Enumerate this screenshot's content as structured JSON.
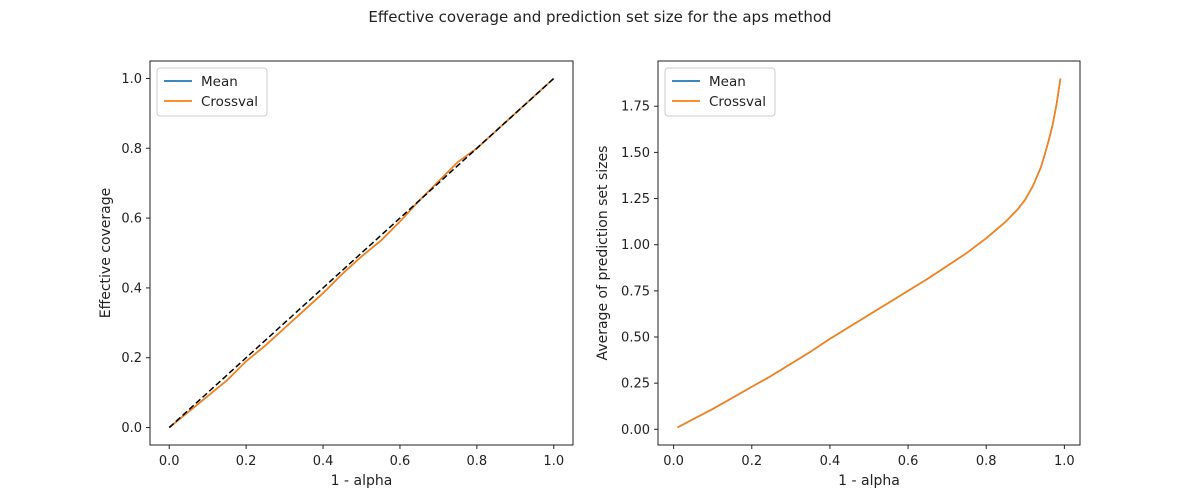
{
  "figure_title": "Effective coverage and prediction set size for the aps method",
  "chart_data": [
    {
      "type": "line",
      "title": "",
      "xlabel": "1 - alpha",
      "ylabel": "Effective coverage",
      "xlim": [
        -0.05,
        1.05
      ],
      "ylim": [
        -0.05,
        1.05
      ],
      "xticks": [
        "0.0",
        "0.2",
        "0.4",
        "0.6",
        "0.8",
        "1.0"
      ],
      "yticks": [
        "0.0",
        "0.2",
        "0.4",
        "0.6",
        "0.8",
        "1.0"
      ],
      "grid": false,
      "legend_position": "top-left",
      "x": [
        0.0,
        0.05,
        0.1,
        0.15,
        0.2,
        0.25,
        0.3,
        0.35,
        0.4,
        0.45,
        0.5,
        0.55,
        0.6,
        0.65,
        0.7,
        0.75,
        0.8,
        0.85,
        0.9,
        0.95,
        1.0
      ],
      "series": [
        {
          "name": "Mean",
          "color": "#1f77b4",
          "style": "solid",
          "values": [
            0.0,
            0.045,
            0.09,
            0.135,
            0.19,
            0.235,
            0.285,
            0.335,
            0.385,
            0.44,
            0.49,
            0.535,
            0.59,
            0.65,
            0.705,
            0.76,
            0.8,
            0.85,
            0.9,
            0.95,
            1.0
          ]
        },
        {
          "name": "Crossval",
          "color": "#ff7f0e",
          "style": "solid",
          "values": [
            0.0,
            0.045,
            0.09,
            0.135,
            0.19,
            0.235,
            0.285,
            0.335,
            0.385,
            0.44,
            0.49,
            0.535,
            0.59,
            0.65,
            0.705,
            0.76,
            0.8,
            0.85,
            0.9,
            0.95,
            1.0
          ]
        },
        {
          "name": "",
          "color": "#000000",
          "style": "dashed",
          "values": [
            0.0,
            0.05,
            0.1,
            0.15,
            0.2,
            0.25,
            0.3,
            0.35,
            0.4,
            0.45,
            0.5,
            0.55,
            0.6,
            0.65,
            0.7,
            0.75,
            0.8,
            0.85,
            0.9,
            0.95,
            1.0
          ]
        }
      ]
    },
    {
      "type": "line",
      "title": "",
      "xlabel": "1 - alpha",
      "ylabel": "Average of prediction set sizes",
      "xlim": [
        -0.04,
        1.04
      ],
      "ylim": [
        -0.085,
        1.995
      ],
      "xticks": [
        "0.0",
        "0.2",
        "0.4",
        "0.6",
        "0.8",
        "1.0"
      ],
      "yticks": [
        "0.00",
        "0.25",
        "0.50",
        "0.75",
        "1.00",
        "1.25",
        "1.50",
        "1.75"
      ],
      "grid": false,
      "legend_position": "top-left",
      "x": [
        0.01,
        0.05,
        0.1,
        0.15,
        0.2,
        0.25,
        0.3,
        0.35,
        0.4,
        0.45,
        0.5,
        0.55,
        0.6,
        0.65,
        0.7,
        0.75,
        0.8,
        0.85,
        0.88,
        0.9,
        0.92,
        0.94,
        0.95,
        0.96,
        0.97,
        0.98,
        0.99
      ],
      "series": [
        {
          "name": "Mean",
          "color": "#1f77b4",
          "style": "solid",
          "values": [
            0.01,
            0.055,
            0.11,
            0.17,
            0.23,
            0.29,
            0.355,
            0.42,
            0.49,
            0.555,
            0.62,
            0.685,
            0.75,
            0.815,
            0.885,
            0.955,
            1.035,
            1.125,
            1.19,
            1.245,
            1.32,
            1.42,
            1.49,
            1.565,
            1.65,
            1.76,
            1.9
          ]
        },
        {
          "name": "Crossval",
          "color": "#ff7f0e",
          "style": "solid",
          "values": [
            0.01,
            0.055,
            0.11,
            0.17,
            0.23,
            0.29,
            0.355,
            0.42,
            0.49,
            0.555,
            0.62,
            0.685,
            0.75,
            0.815,
            0.885,
            0.955,
            1.035,
            1.125,
            1.19,
            1.245,
            1.32,
            1.42,
            1.49,
            1.565,
            1.65,
            1.76,
            1.9
          ]
        }
      ]
    }
  ]
}
